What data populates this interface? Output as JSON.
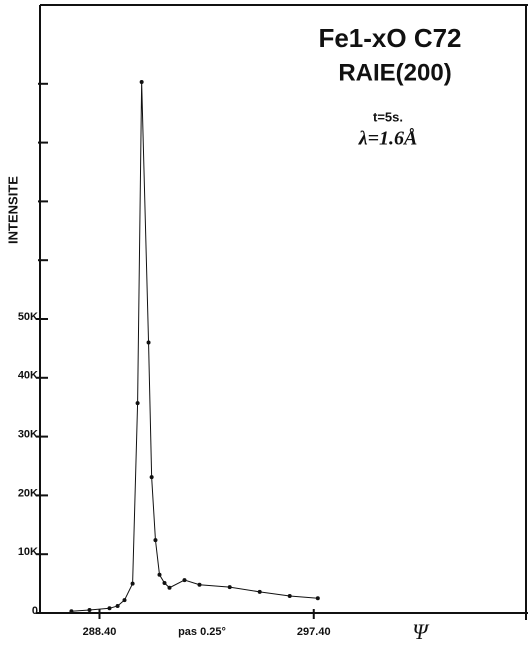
{
  "chart_data": {
    "type": "line",
    "title": "Fe1-xO C72",
    "subtitle": "RAIE(200)",
    "annotations": [
      "t=5s.",
      "λ=1.6Å",
      "pas 0.25°"
    ],
    "ylabel": "INTENSITE",
    "xlabel": "Ψ",
    "x": [
      287.22,
      287.98,
      288.82,
      289.16,
      289.45,
      289.79,
      290.0,
      290.17,
      290.46,
      290.59,
      290.75,
      290.92,
      291.13,
      291.34,
      291.97,
      292.6,
      293.87,
      295.13,
      296.39,
      297.57
    ],
    "series": [
      {
        "color": "#111111",
        "values": [
          300,
          500,
          800,
          1200,
          2200,
          5000,
          35700,
          90300,
          46000,
          23100,
          12400,
          6500,
          5100,
          4300,
          5600,
          4800,
          4400,
          3600,
          2900,
          2500
        ]
      }
    ],
    "xlim": [
      285.9,
      306.4
    ],
    "xticks": [
      {
        "value": 288.4,
        "label": "288.40"
      },
      {
        "value": 297.4,
        "label": "297.40"
      }
    ],
    "ylim": [
      0,
      103400
    ],
    "yticks": [
      {
        "value": 0,
        "label": "0"
      },
      {
        "value": 10000,
        "label": "10K"
      },
      {
        "value": 20000,
        "label": "20K"
      },
      {
        "value": 30000,
        "label": "30K"
      },
      {
        "value": 40000,
        "label": "40K"
      },
      {
        "value": 50000,
        "label": "50K"
      }
    ],
    "yticks_unlabeled": [
      60000,
      70000,
      80000,
      90000
    ]
  }
}
